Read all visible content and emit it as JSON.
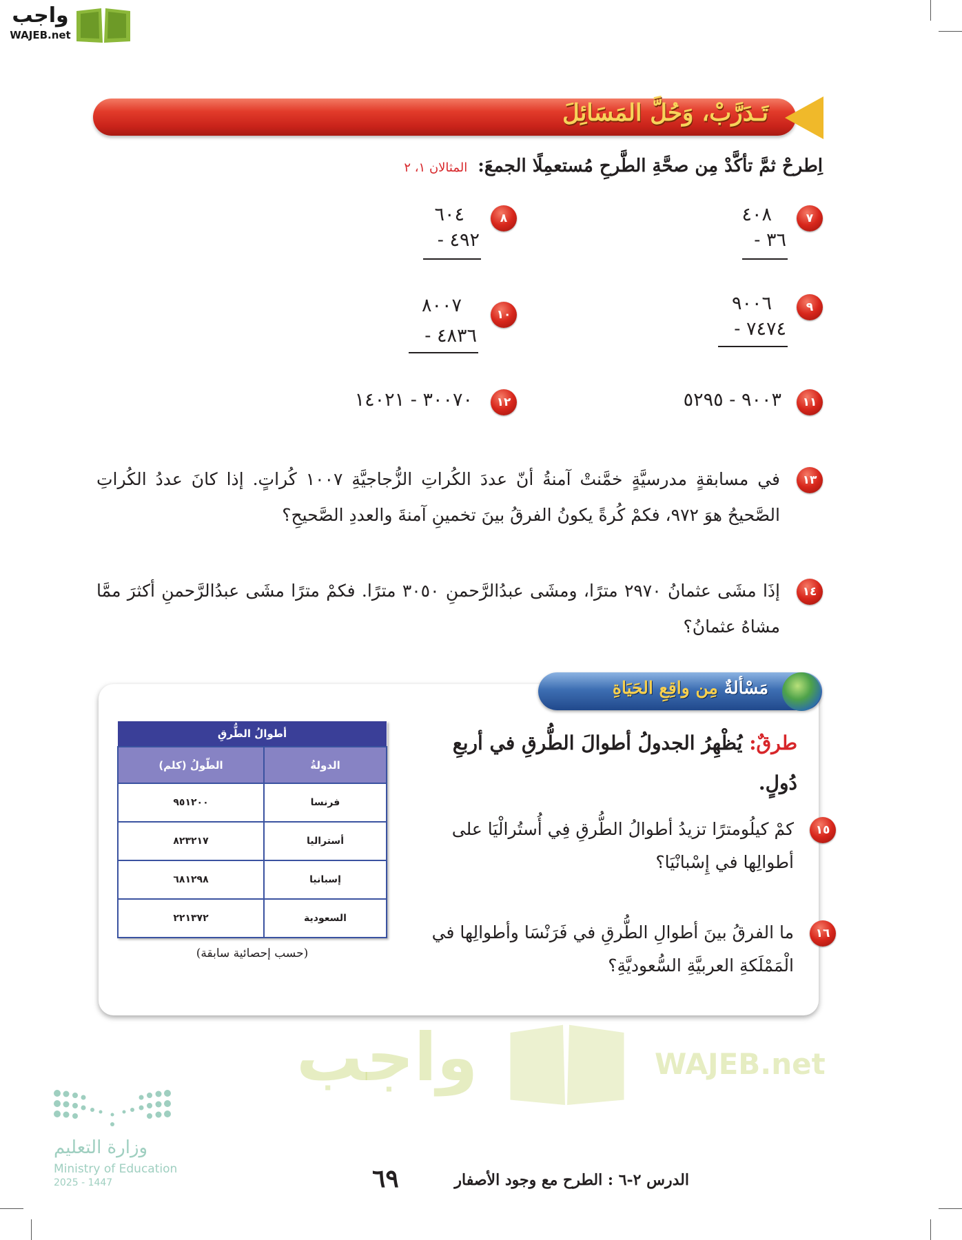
{
  "watermark_logo": {
    "arabic": "واجب",
    "latin": "WAJEB.net"
  },
  "section_banner": {
    "title": "تَـدَرَّبْ، وَحُلَّ المَسَائِلَ"
  },
  "instruction": {
    "text": "اِطرحْ ثمَّ تأكَّدْ مِن صحَّةِ الطَّرحِ مُستعمِلًا الجمعَ:",
    "reference": "المثالان ١، ٢"
  },
  "exercises": [
    {
      "number": "٧",
      "top": "٤٠٨",
      "bottom": "٣٦ -"
    },
    {
      "number": "٨",
      "top": "٦٠٤",
      "bottom": "٤٩٢ -"
    },
    {
      "number": "٩",
      "top": "٩٠٠٦",
      "bottom": "٧٤٧٤ -"
    },
    {
      "number": "١٠",
      "top": "٨٠٠٧",
      "bottom": "٤٨٣٦ -"
    },
    {
      "number": "١١",
      "expression": "٩٠٠٣ - ٥٢٩٥"
    },
    {
      "number": "١٢",
      "expression": "٣٠٠٧٠ - ١٤٠٢١"
    }
  ],
  "word_problems": [
    {
      "number": "١٣",
      "text": "في مسابقةٍ مدرسيَّةٍ خمَّنتْ آمنةُ أنّ عددَ الكُراتِ الزُّجاجيَّةِ ١٠٠٧ كُراتٍ. إذا كانَ عددُ الكُراتِ الصَّحيحُ هوَ ٩٧٢، فكمْ كُرةً يكونُ الفرقُ بينَ تخمينِ آمنةَ والعددِ الصَّحيحِ؟"
    },
    {
      "number": "١٤",
      "text": "إذَا مشَى عثمانُ ٢٩٧٠ مترًا، ومشَى عبدُالرَّحمنِ ٣٠٥٠ مترًا. فكمْ مترًا مشَى عبدُالرَّحمنِ أكثرَ ممَّا مشاهُ عثمانُ؟"
    }
  ],
  "real_life": {
    "header_part1": "مَسْألةٌ",
    "header_part2": "مِن واقِعِ الحَيَاةِ",
    "intro_label": "طرقٌ:",
    "intro_text": "يُظْهِرُ الجدولُ أطوالَ الطُّرقِ في أربعِ دُولٍ.",
    "table": {
      "title": "أطوالُ الطُّرقِ",
      "headers": [
        "الدولةُ",
        "الطّولُ (كلم)"
      ],
      "rows": [
        [
          "فرنسا",
          "٩٥١٢٠٠"
        ],
        [
          "أستراليا",
          "٨٢٣٢١٧"
        ],
        [
          "إسبانيا",
          "٦٨١٢٩٨"
        ],
        [
          "السعودية",
          "٢٢١٣٧٢"
        ]
      ],
      "caption": "(حسب إحصائية سابقة)"
    },
    "questions": [
      {
        "number": "١٥",
        "text": "كمْ كيلُومترًا تزيدُ أطوالُ الطُّرقِ فِي أُستُرالْيَا على أطوالِها في إِسْبانْيَا؟"
      },
      {
        "number": "١٦",
        "text": "ما الفرقُ بينَ أطوالِ الطُّرقِ في فَرَنْسَا وأطوالِها في الْمَمْلَكةِ العربيَّةِ السُّعوديَّةِ؟"
      }
    ]
  },
  "ministry_logo": {
    "arabic": "وزارة التعليم",
    "english": "Ministry of Education",
    "year": "2025 - 1447"
  },
  "footer": {
    "lesson": "الدرس ٢-٦ :  الطرح مع وجود الأصفار",
    "page_number": "٦٩"
  },
  "colors": {
    "banner_red": "#d8271c",
    "banner_text": "#f7d35a",
    "table_header": "#3a3f98",
    "table_subheader": "#8783c4",
    "reference_red": "#d7262a"
  }
}
